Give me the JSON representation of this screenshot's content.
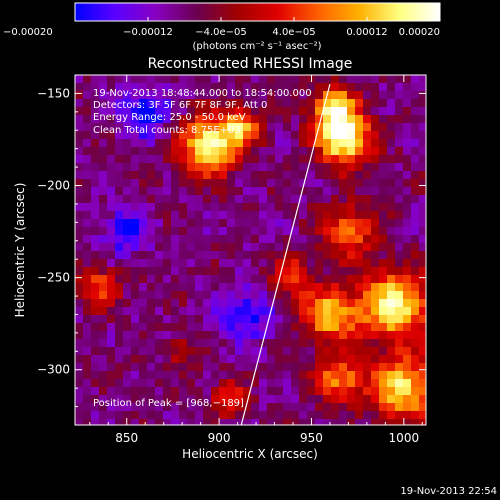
{
  "chart_data": {
    "type": "heatmap",
    "title": "Reconstructed RHESSI Image",
    "xlabel": "Heliocentric X (arcsec)",
    "ylabel": "Heliocentric Y (arcsec)",
    "xlim": [
      822,
      1012
    ],
    "ylim": [
      -330,
      -140
    ],
    "x_ticks": [
      850,
      900,
      950,
      1000
    ],
    "y_ticks": [
      -300,
      -250,
      -200,
      -150
    ],
    "x_tick_labels": [
      "850",
      "900",
      "950",
      "1000"
    ],
    "y_tick_labels": [
      "−300",
      "−250",
      "−200",
      "−150"
    ],
    "info_lines": [
      "19-Nov-2013 18:48:44.000 to 18:54:00.000",
      "Detectors: 3F 5F 6F 7F 8F 9F, Att 0",
      "Energy Range: 25.0 - 50.0 keV",
      "Clean    Total counts: 8.75E+03"
    ],
    "peak_label": "Position of Peak = [968,−189]",
    "peak_position": [
      968,
      -189
    ],
    "limb_line": [
      [
        912,
        -330
      ],
      [
        960,
        -145
      ]
    ],
    "colorbar": {
      "range": [
        -0.0002,
        0.0002
      ],
      "tick_labels": [
        "−0.00020",
        "−0.00012",
        "−4.0e−05",
        "4.0e−05",
        "0.00012",
        "0.00020"
      ],
      "tick_values": [
        -0.0002,
        -0.00012,
        -4e-05,
        4e-05,
        0.00012,
        0.0002
      ],
      "unit_label": "(photons cm⁻² s⁻¹ asec⁻²)",
      "stops": [
        "#0000ff",
        "#5a00ff",
        "#8800c0",
        "#6a0050",
        "#a00000",
        "#e00000",
        "#ff6000",
        "#ffb000",
        "#ffff80",
        "#ffffff"
      ]
    },
    "sources": [
      {
        "x": 968,
        "y": -175,
        "sigma": 10,
        "amp": 1.0
      },
      {
        "x": 962,
        "y": -158,
        "sigma": 8,
        "amp": 0.8
      },
      {
        "x": 895,
        "y": -178,
        "sigma": 11,
        "amp": 0.9
      },
      {
        "x": 912,
        "y": -168,
        "sigma": 7,
        "amp": 0.6
      },
      {
        "x": 995,
        "y": -265,
        "sigma": 13,
        "amp": 0.9
      },
      {
        "x": 960,
        "y": -270,
        "sigma": 10,
        "amp": 0.75
      },
      {
        "x": 1000,
        "y": -310,
        "sigma": 12,
        "amp": 0.8
      },
      {
        "x": 965,
        "y": -305,
        "sigma": 9,
        "amp": 0.6
      },
      {
        "x": 970,
        "y": -225,
        "sigma": 10,
        "amp": 0.55
      },
      {
        "x": 940,
        "y": -250,
        "sigma": 8,
        "amp": 0.45
      },
      {
        "x": 835,
        "y": -255,
        "sigma": 8,
        "amp": 0.45
      },
      {
        "x": 905,
        "y": -315,
        "sigma": 7,
        "amp": 0.4
      },
      {
        "x": 880,
        "y": -290,
        "sigma": 6,
        "amp": 0.3
      },
      {
        "x": 850,
        "y": -225,
        "sigma": 8,
        "amp": -0.45
      },
      {
        "x": 860,
        "y": -160,
        "sigma": 9,
        "amp": -0.5
      },
      {
        "x": 915,
        "y": -270,
        "sigma": 10,
        "amp": -0.4
      }
    ]
  },
  "footer": {
    "timestamp": "19-Nov-2013 22:54"
  }
}
